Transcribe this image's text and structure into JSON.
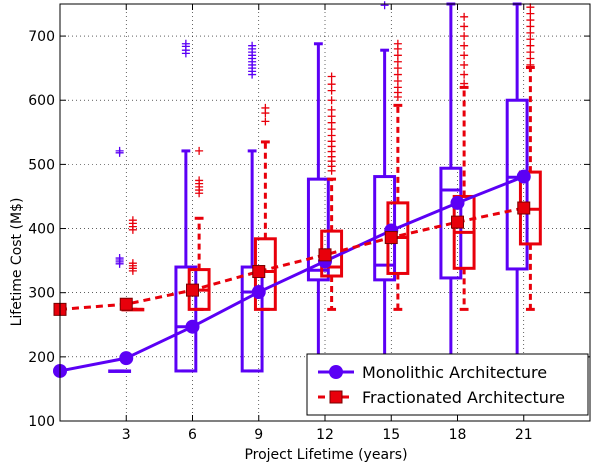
{
  "chart_data": {
    "type": "line",
    "xlabel": "Project Lifetime (years)",
    "ylabel": "Lifetime Cost (M$)",
    "xlim": [
      0,
      24
    ],
    "ylim": [
      100,
      750
    ],
    "x_ticks": [
      "3",
      "6",
      "9",
      "12",
      "15",
      "18",
      "21"
    ],
    "y_ticks": [
      "100",
      "200",
      "300",
      "400",
      "500",
      "600",
      "700"
    ],
    "grid": true,
    "legend_position": "bottom-right",
    "series": [
      {
        "name": "Monolithic Architecture",
        "color": "#5b00f5",
        "marker": "circle",
        "line": "solid",
        "x": [
          0,
          3,
          6,
          9,
          12,
          15,
          18,
          21
        ],
        "y": [
          178,
          198,
          247,
          301,
          349,
          397,
          440,
          481
        ]
      },
      {
        "name": "Fractionated Architecture",
        "color": "#e8000b",
        "marker": "square",
        "line": "dashed",
        "x": [
          0,
          3,
          6,
          9,
          12,
          15,
          18,
          21
        ],
        "y": [
          274,
          282,
          304,
          333,
          359,
          386,
          410,
          432
        ]
      }
    ],
    "boxplots": [
      {
        "series": "Monolithic Architecture",
        "boxes": [
          {
            "x": 3,
            "whisker_low": 178,
            "q1": 178,
            "median": 178,
            "q3": 178,
            "whisker_high": 178,
            "outliers": [
              345,
              348,
              351,
              354,
              518,
              521
            ]
          },
          {
            "x": 6,
            "whisker_low": 178,
            "q1": 178,
            "median": 247,
            "q3": 340,
            "whisker_high": 521,
            "outliers": [
              673,
              678,
              684,
              688
            ]
          },
          {
            "x": 9,
            "whisker_low": 178,
            "q1": 178,
            "median": 301,
            "q3": 340,
            "whisker_high": 521,
            "outliers": [
              640,
              645,
              650,
              655,
              660,
              665,
              670,
              675,
              680,
              685
            ]
          },
          {
            "x": 12,
            "whisker_low": 178,
            "q1": 320,
            "median": 335,
            "q3": 477,
            "whisker_high": 688,
            "outliers": []
          },
          {
            "x": 15,
            "whisker_low": 178,
            "q1": 320,
            "median": 343,
            "q3": 481,
            "whisker_high": 678,
            "outliers": [
              748
            ]
          },
          {
            "x": 18,
            "whisker_low": 178,
            "q1": 323,
            "median": 460,
            "q3": 494,
            "whisker_high": 750,
            "outliers": []
          },
          {
            "x": 21,
            "whisker_low": 178,
            "q1": 337,
            "median": 480,
            "q3": 600,
            "whisker_high": 750,
            "outliers": []
          }
        ]
      },
      {
        "series": "Fractionated Architecture",
        "boxes": [
          {
            "x": 3,
            "whisker_low": 274,
            "q1": 274,
            "median": 274,
            "q3": 274,
            "whisker_high": 274,
            "outliers": [
              334,
              338,
              342,
              346,
              398,
              403,
              408,
              413
            ]
          },
          {
            "x": 6,
            "whisker_low": 274,
            "q1": 274,
            "median": 304,
            "q3": 336,
            "whisker_high": 416,
            "outliers": [
              455,
              460,
              465,
              470,
              475,
              521
            ]
          },
          {
            "x": 9,
            "whisker_low": 274,
            "q1": 274,
            "median": 333,
            "q3": 384,
            "whisker_high": 535,
            "outliers": [
              567,
              580,
              588
            ]
          },
          {
            "x": 12,
            "whisker_low": 274,
            "q1": 326,
            "median": 340,
            "q3": 396,
            "whisker_high": 477,
            "outliers": [
              490,
              497,
              505,
              512,
              520,
              528,
              536,
              545,
              555,
              565,
              575,
              585,
              600,
              615,
              625,
              637
            ]
          },
          {
            "x": 15,
            "whisker_low": 274,
            "q1": 330,
            "median": 386,
            "q3": 440,
            "whisker_high": 592,
            "outliers": [
              605,
              612,
              620,
              630,
              640,
              650,
              660,
              670,
              680,
              688
            ]
          },
          {
            "x": 18,
            "whisker_low": 274,
            "q1": 338,
            "median": 394,
            "q3": 450,
            "whisker_high": 620,
            "outliers": [
              626,
              640,
              655,
              670,
              685,
              700,
              715,
              730
            ]
          },
          {
            "x": 21,
            "whisker_low": 274,
            "q1": 376,
            "median": 430,
            "q3": 488,
            "whisker_high": 651,
            "outliers": [
              655,
              665,
              675,
              685,
              695,
              705,
              715,
              725,
              735,
              745
            ]
          }
        ]
      }
    ]
  }
}
